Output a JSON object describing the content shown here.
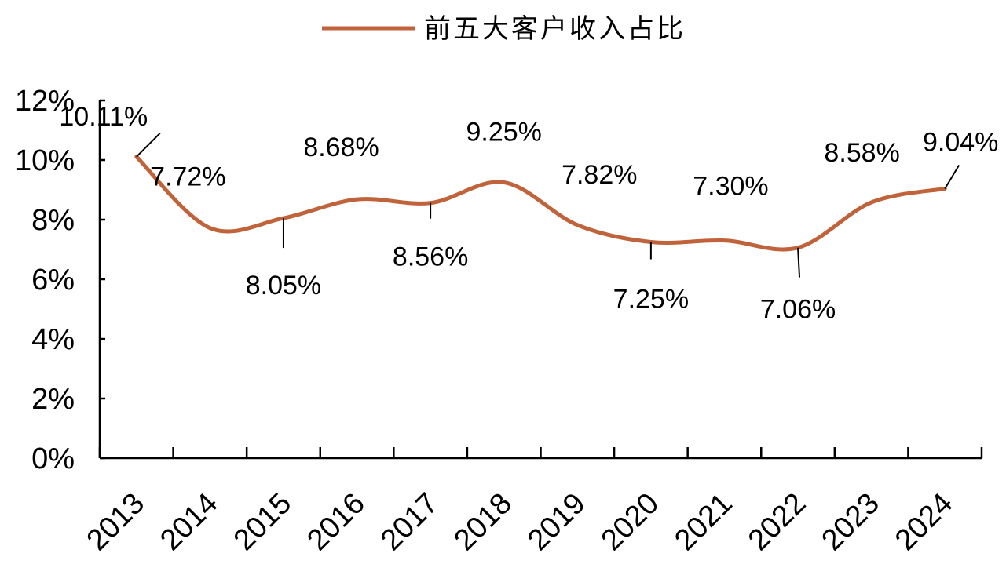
{
  "chart_data": {
    "type": "line",
    "categories": [
      "2013",
      "2014",
      "2015",
      "2016",
      "2017",
      "2018",
      "2019",
      "2020",
      "2021",
      "2022",
      "2023",
      "2024"
    ],
    "series": [
      {
        "name": "前五大客户收入占比",
        "values": [
          10.11,
          7.72,
          8.05,
          8.68,
          8.56,
          9.25,
          7.82,
          7.25,
          7.3,
          7.06,
          8.58,
          9.04
        ]
      }
    ],
    "data_labels": [
      "10.11%",
      "7.72%",
      "8.05%",
      "8.68%",
      "8.56%",
      "9.25%",
      "7.82%",
      "7.25%",
      "7.30%",
      "7.06%",
      "8.58%",
      "9.04%"
    ],
    "y_ticks": [
      "0%",
      "2%",
      "4%",
      "6%",
      "8%",
      "10%",
      "12%"
    ],
    "ylim": [
      0,
      12
    ],
    "legend_position": "top",
    "grid": false,
    "line_color": "#c0623a",
    "smooth": true
  }
}
